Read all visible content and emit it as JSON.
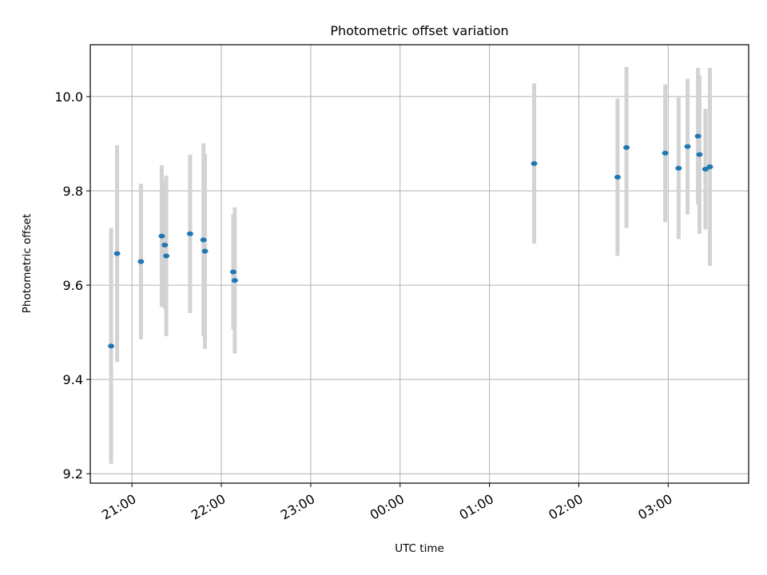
{
  "chart_data": {
    "type": "scatter",
    "title": "Photometric offset variation",
    "xlabel": "UTC time",
    "ylabel": "Photometric offset",
    "x_tick_labels": [
      "21:00",
      "22:00",
      "23:00",
      "00:00",
      "01:00",
      "02:00",
      "03:00"
    ],
    "y_ticks": [
      9.2,
      9.4,
      9.6,
      9.8,
      10.0
    ],
    "y_tick_labels": [
      "9.2",
      "9.4",
      "9.6",
      "9.8",
      "10.0"
    ],
    "ylim": [
      9.18,
      10.11
    ],
    "xlim": [
      "20:32",
      "03:54"
    ],
    "grid": true,
    "marker_color": "#1f77b4",
    "errorbar_color": "#d3d3d3",
    "points": [
      {
        "time": "20:46",
        "y": 9.471,
        "err": 0.25
      },
      {
        "time": "20:50",
        "y": 9.667,
        "err": 0.23
      },
      {
        "time": "21:06",
        "y": 9.65,
        "err": 0.165
      },
      {
        "time": "21:20",
        "y": 9.704,
        "err": 0.15
      },
      {
        "time": "21:22",
        "y": 9.685,
        "err": 0.135
      },
      {
        "time": "21:23",
        "y": 9.662,
        "err": 0.17
      },
      {
        "time": "21:39",
        "y": 9.709,
        "err": 0.168
      },
      {
        "time": "21:48",
        "y": 9.696,
        "err": 0.205
      },
      {
        "time": "21:49",
        "y": 9.672,
        "err": 0.207
      },
      {
        "time": "22:08",
        "y": 9.628,
        "err": 0.122
      },
      {
        "time": "22:09",
        "y": 9.61,
        "err": 0.155
      },
      {
        "time": "01:30",
        "y": 9.858,
        "err": 0.17
      },
      {
        "time": "02:26",
        "y": 9.829,
        "err": 0.167
      },
      {
        "time": "02:32",
        "y": 9.892,
        "err": 0.171
      },
      {
        "time": "02:58",
        "y": 9.88,
        "err": 0.146
      },
      {
        "time": "03:07",
        "y": 9.848,
        "err": 0.15
      },
      {
        "time": "03:13",
        "y": 9.894,
        "err": 0.144
      },
      {
        "time": "03:20",
        "y": 9.916,
        "err": 0.145
      },
      {
        "time": "03:21",
        "y": 9.877,
        "err": 0.168
      },
      {
        "time": "03:25",
        "y": 9.846,
        "err": 0.128
      },
      {
        "time": "03:28",
        "y": 9.851,
        "err": 0.21
      }
    ]
  }
}
